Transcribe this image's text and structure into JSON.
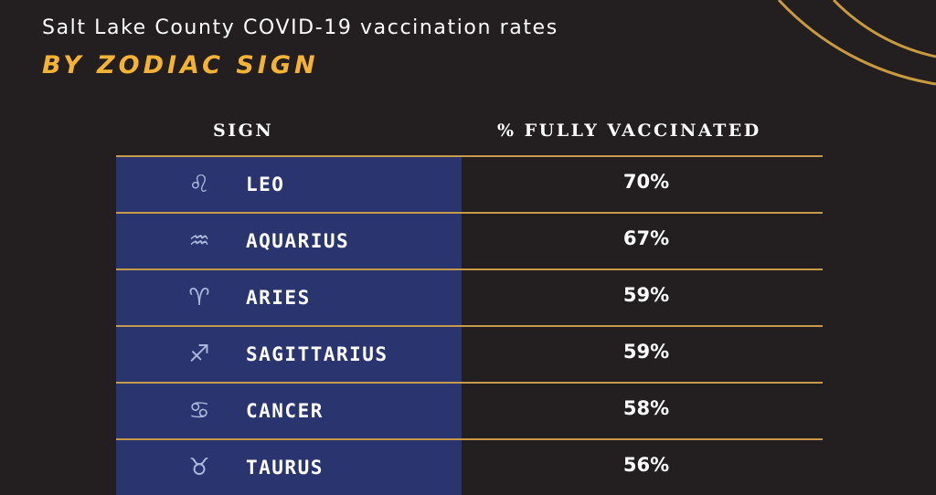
{
  "header": {
    "title": "Salt Lake County COVID-19 vaccination rates",
    "subtitle": "BY ZODIAC SIGN"
  },
  "table": {
    "columns": [
      "SIGN",
      "% FULLY VACCINATED"
    ]
  },
  "colors": {
    "background": "#231f20",
    "accent_gold": "#f5b335",
    "divider": "#c79a4a",
    "sign_cell": "#2a3570",
    "icon": "#aeb8dc"
  },
  "chart_data": {
    "type": "table",
    "title": "Salt Lake County COVID-19 vaccination rates",
    "subtitle": "BY ZODIAC SIGN",
    "columns": [
      "SIGN",
      "% FULLY VACCINATED"
    ],
    "rows": [
      {
        "sign": "LEO",
        "icon": "leo-icon",
        "glyph": "♌︎",
        "value": "70%"
      },
      {
        "sign": "AQUARIUS",
        "icon": "aquarius-icon",
        "glyph": "♒︎",
        "value": "67%"
      },
      {
        "sign": "ARIES",
        "icon": "aries-icon",
        "glyph": "♈︎",
        "value": "59%"
      },
      {
        "sign": "SAGITTARIUS",
        "icon": "sagittarius-icon",
        "glyph": "♐︎",
        "value": "59%"
      },
      {
        "sign": "CANCER",
        "icon": "cancer-icon",
        "glyph": "♋︎",
        "value": "58%"
      },
      {
        "sign": "TAURUS",
        "icon": "taurus-icon",
        "glyph": "♉︎",
        "value": "56%"
      }
    ]
  }
}
